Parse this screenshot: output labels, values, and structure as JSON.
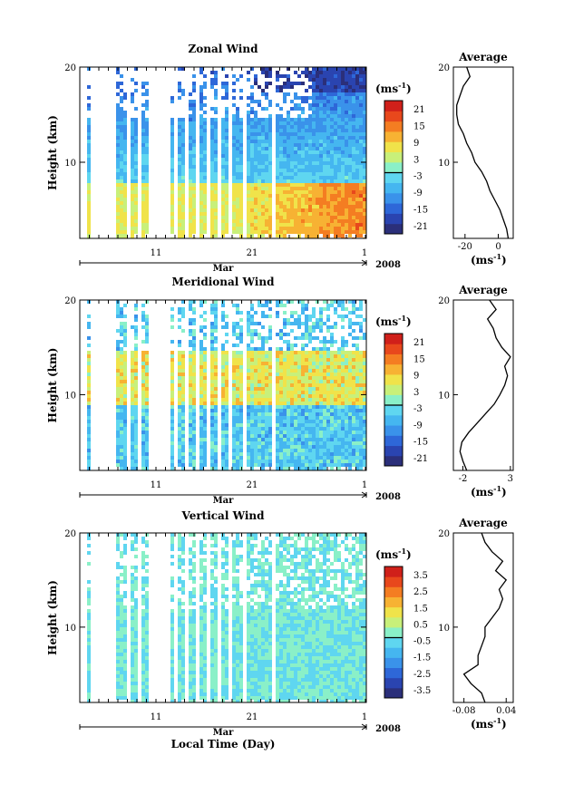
{
  "chart_data": [
    {
      "type": "heatmap",
      "title": "Zonal Wind",
      "ylabel": "Height (km)",
      "yticks": [
        "20",
        "10"
      ],
      "ylim": [
        2,
        20
      ],
      "xticks": [
        "11",
        "21",
        "1"
      ],
      "xlabel_month": "Mar",
      "year": "2008",
      "colorbar": {
        "unit": "(ms",
        "exp": "-1",
        "unit_end": ")",
        "labels": [
          "21",
          "15",
          "9",
          "3",
          "-3",
          "-9",
          "-15",
          "-21"
        ],
        "range": [
          -24,
          24
        ]
      },
      "profile": {
        "title": "Average",
        "xticks": [
          "-20",
          "0"
        ],
        "xlim": [
          -27,
          9
        ],
        "xunit": "(ms",
        "xexp": "-1",
        "xunit_end": ")",
        "yticks": [
          "20",
          "10"
        ],
        "points": [
          [
            6,
            2
          ],
          [
            5,
            3
          ],
          [
            3,
            4
          ],
          [
            1,
            5
          ],
          [
            -2,
            6
          ],
          [
            -5,
            7
          ],
          [
            -7,
            8
          ],
          [
            -10,
            9
          ],
          [
            -14,
            10
          ],
          [
            -16,
            11
          ],
          [
            -19,
            12
          ],
          [
            -21,
            13
          ],
          [
            -24,
            14
          ],
          [
            -25,
            15
          ],
          [
            -25,
            16
          ],
          [
            -23,
            17
          ],
          [
            -21,
            18
          ],
          [
            -17,
            19
          ],
          [
            -19,
            20
          ]
        ]
      }
    },
    {
      "type": "heatmap",
      "title": "Meridional Wind",
      "ylabel": "Height (km)",
      "yticks": [
        "20",
        "10"
      ],
      "ylim": [
        2,
        20
      ],
      "xticks": [
        "11",
        "21",
        "1"
      ],
      "xlabel_month": "Mar",
      "year": "2008",
      "colorbar": {
        "unit": "(ms",
        "exp": "-1",
        "unit_end": ")",
        "labels": [
          "21",
          "15",
          "9",
          "3",
          "-3",
          "-9",
          "-15",
          "-21"
        ],
        "range": [
          -24,
          24
        ]
      },
      "profile": {
        "title": "Average",
        "xticks": [
          "-2",
          "3"
        ],
        "xlim": [
          -3,
          3.3
        ],
        "xunit": "(ms",
        "xexp": "-1",
        "xunit_end": ")",
        "yticks": [
          "20",
          "10"
        ],
        "points": [
          [
            -1.6,
            2
          ],
          [
            -2.0,
            3
          ],
          [
            -2.3,
            4
          ],
          [
            -2.1,
            5
          ],
          [
            -1.4,
            6
          ],
          [
            -0.5,
            7
          ],
          [
            0.4,
            8
          ],
          [
            1.3,
            9
          ],
          [
            1.9,
            10
          ],
          [
            2.4,
            11
          ],
          [
            2.7,
            12
          ],
          [
            2.4,
            13
          ],
          [
            3.0,
            14
          ],
          [
            2.1,
            15
          ],
          [
            1.5,
            16
          ],
          [
            1.2,
            17
          ],
          [
            0.6,
            18
          ],
          [
            1.5,
            19
          ],
          [
            0.8,
            20
          ]
        ]
      }
    },
    {
      "type": "heatmap",
      "title": "Vertical Wind",
      "ylabel": "Height (km)",
      "yticks": [
        "20",
        "10"
      ],
      "ylim": [
        2,
        20
      ],
      "xticks": [
        "11",
        "21",
        "1"
      ],
      "xlabel_month": "Mar",
      "xlabel": "Local Time (Day)",
      "year": "2008",
      "colorbar": {
        "unit": "(ms",
        "exp": "-1",
        "unit_end": ")",
        "labels": [
          "3.5",
          "2.5",
          "1.5",
          "0.5",
          "-0.5",
          "-1.5",
          "-2.5",
          "-3.5"
        ],
        "range": [
          -4,
          4
        ]
      },
      "profile": {
        "title": "Average",
        "xticks": [
          "-0.08",
          "0.04"
        ],
        "xlim": [
          -0.11,
          0.06
        ],
        "xunit": "(ms",
        "xexp": "-1",
        "xunit_end": ")",
        "yticks": [
          "20",
          "10"
        ],
        "points": [
          [
            -0.02,
            2
          ],
          [
            -0.03,
            3
          ],
          [
            -0.06,
            4
          ],
          [
            -0.08,
            5
          ],
          [
            -0.04,
            6
          ],
          [
            -0.04,
            7
          ],
          [
            -0.03,
            8
          ],
          [
            -0.02,
            9
          ],
          [
            -0.02,
            10
          ],
          [
            0.0,
            11
          ],
          [
            0.02,
            12
          ],
          [
            0.03,
            13
          ],
          [
            0.02,
            14
          ],
          [
            0.04,
            15
          ],
          [
            0.01,
            16
          ],
          [
            0.03,
            17
          ],
          [
            0.0,
            18
          ],
          [
            -0.02,
            19
          ],
          [
            -0.03,
            20
          ]
        ]
      }
    }
  ],
  "colors": {
    "scale": [
      "#2b2f7a",
      "#2a44b0",
      "#2e67d8",
      "#3a92ea",
      "#45b6f0",
      "#5fd6f0",
      "#8af0c8",
      "#c8f07a",
      "#f0e34a",
      "#f7b233",
      "#f47d22",
      "#e8481c",
      "#d0201a"
    ]
  }
}
